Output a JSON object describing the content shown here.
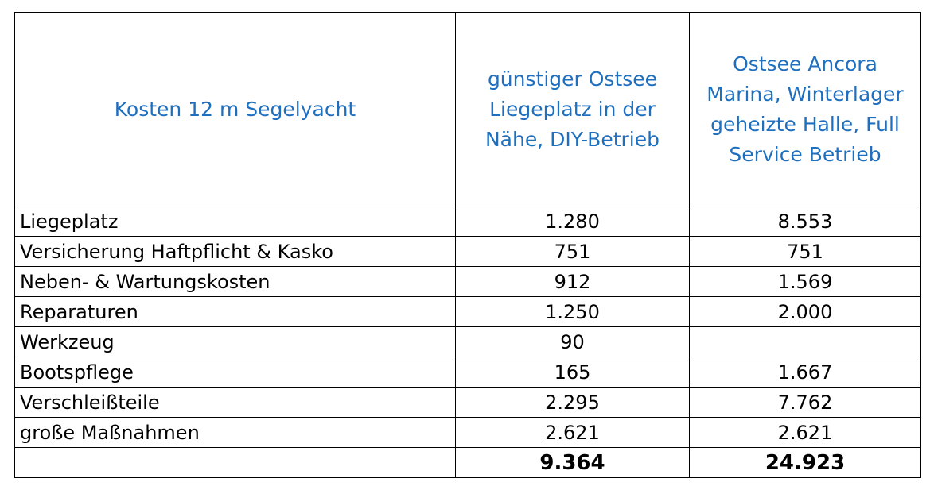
{
  "header": {
    "col1": "Kosten 12 m Segelyacht",
    "col2": "günstiger Ostsee Liegeplatz in der Nähe, DIY-Betrieb",
    "col3": "Ostsee Ancora Marina, Winterlager geheizte Halle, Full Service Betrieb"
  },
  "rows": [
    {
      "label": "Liegeplatz",
      "diy": "1.280",
      "full": "8.553"
    },
    {
      "label": "Versicherung Haftpflicht & Kasko",
      "diy": "751",
      "full": "751"
    },
    {
      "label": "Neben- & Wartungskosten",
      "diy": "912",
      "full": "1.569"
    },
    {
      "label": "Reparaturen",
      "diy": "1.250",
      "full": "2.000"
    },
    {
      "label": "Werkzeug",
      "diy": "90",
      "full": ""
    },
    {
      "label": "Bootspflege",
      "diy": "165",
      "full": "1.667"
    },
    {
      "label": "Verschleißteile",
      "diy": "2.295",
      "full": "7.762"
    },
    {
      "label": "große Maßnahmen",
      "diy": "2.621",
      "full": "2.621"
    }
  ],
  "total": {
    "label": "",
    "diy": "9.364",
    "full": "24.923"
  },
  "colors": {
    "header_text": "#1f6fbf",
    "border": "#000000"
  }
}
